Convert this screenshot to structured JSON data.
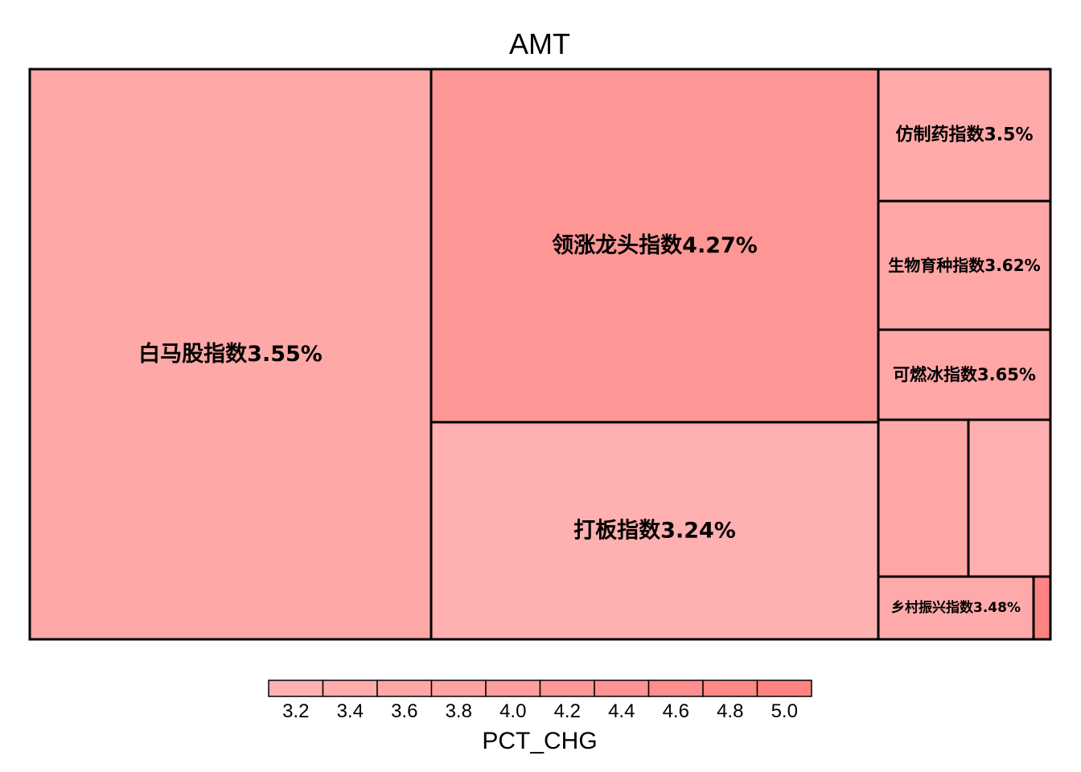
{
  "chart_data": {
    "type": "treemap",
    "title": "AMT",
    "size_measure": "AMT",
    "color_measure": "PCT_CHG",
    "items": [
      {
        "name": "白马股指数",
        "label": "白马股指数3.55%",
        "pct_chg": 3.55,
        "amt": 30.2
      },
      {
        "name": "领涨龙头指数",
        "label": "领涨龙头指数4.27%",
        "pct_chg": 4.27,
        "amt": 21.0
      },
      {
        "name": "打板指数",
        "label": "打板指数3.24%",
        "pct_chg": 3.24,
        "amt": 12.8
      },
      {
        "name": "仿制药指数",
        "label": "仿制药指数3.5%",
        "pct_chg": 3.5,
        "amt": 2.85
      },
      {
        "name": "生物育种指数",
        "label": "生物育种指数3.62%",
        "pct_chg": 3.62,
        "amt": 2.78
      },
      {
        "name": "可燃冰指数",
        "label": "可燃冰指数3.65%",
        "pct_chg": 3.65,
        "amt": 1.97
      },
      {
        "name": "",
        "label": "",
        "pct_chg": 3.6,
        "amt": 1.9
      },
      {
        "name": "",
        "label": "",
        "pct_chg": 3.3,
        "amt": 1.7
      },
      {
        "name": "乡村振兴指数",
        "label": "乡村振兴指数3.48%",
        "pct_chg": 3.48,
        "amt": 1.35
      },
      {
        "name": "",
        "label": "",
        "pct_chg": 5.0,
        "amt": 0.12
      }
    ],
    "legend": {
      "title": "PCT_CHG",
      "ticks": [
        "3.2",
        "3.4",
        "3.6",
        "3.8",
        "4.0",
        "4.2",
        "4.4",
        "4.6",
        "4.8",
        "5.0"
      ],
      "range": [
        3.1,
        5.1
      ],
      "color_low": "#FFB4B4",
      "color_high": "#FF8080"
    }
  }
}
